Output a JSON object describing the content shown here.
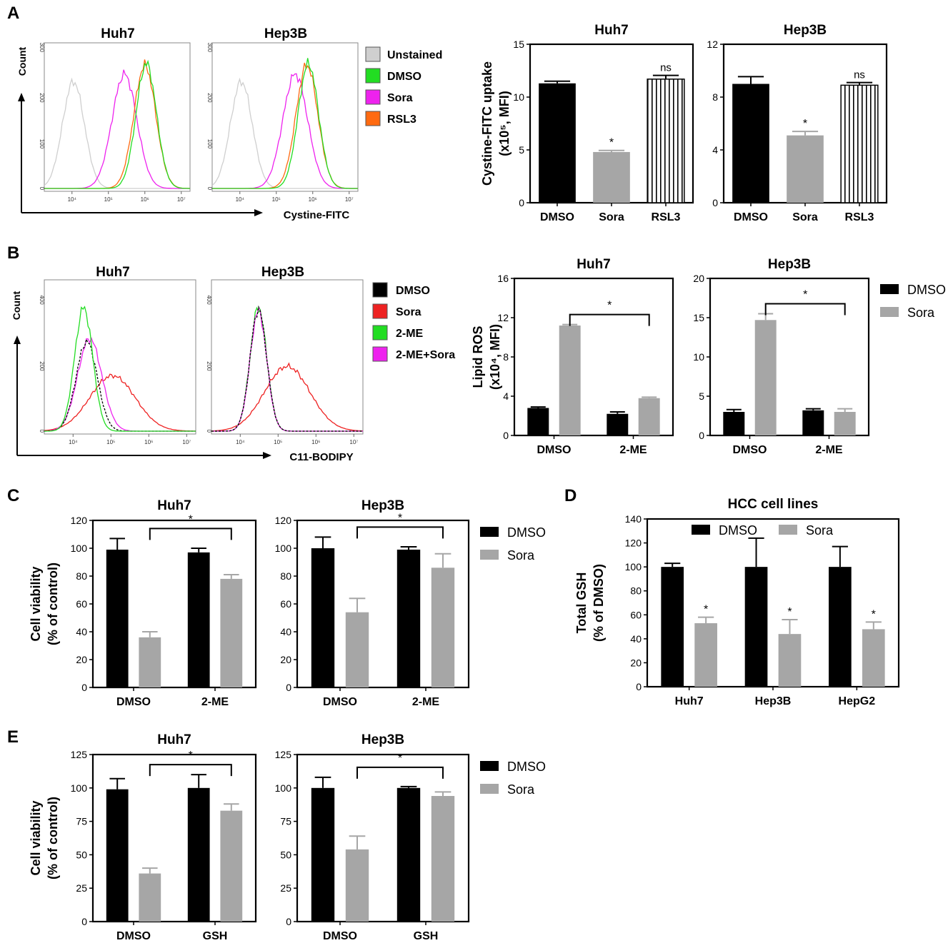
{
  "panels": {
    "A": "A",
    "B": "B",
    "C": "C",
    "D": "D",
    "E": "E"
  },
  "colors": {
    "black": "#000000",
    "gray": "#a6a6a6",
    "unstained": "#cfcfcf",
    "green": "#22dd22",
    "magenta": "#ee22ee",
    "orange": "#ff6a10",
    "red": "#ee2222"
  },
  "histA": {
    "count_label": "Count",
    "x_label": "Cystine-FITC",
    "titles": [
      "Huh7",
      "Hep3B"
    ],
    "y_ticks": [
      "300",
      "200",
      "100",
      "0"
    ],
    "x_ticks": [
      "10⁴",
      "10⁵",
      "10⁶",
      "10⁷"
    ],
    "legend": [
      {
        "label": "Unstained",
        "color": "#cfcfcf"
      },
      {
        "label": "DMSO",
        "color": "#22dd22"
      },
      {
        "label": "Sora",
        "color": "#ee22ee"
      },
      {
        "label": "RSL3",
        "color": "#ff6a10"
      }
    ]
  },
  "histB": {
    "count_label": "Count",
    "x_label": "C11-BODIPY",
    "titles": [
      "Huh7",
      "Hep3B"
    ],
    "y_ticks": [
      "400",
      "200",
      "0"
    ],
    "x_ticks": [
      "10⁴",
      "10⁵",
      "10⁶",
      "10⁷"
    ],
    "legend": [
      {
        "label": "DMSO",
        "color": "#000000"
      },
      {
        "label": "Sora",
        "color": "#ee2222"
      },
      {
        "label": "2-ME",
        "color": "#22dd22"
      },
      {
        "label": "2-ME+Sora",
        "color": "#ee22ee"
      }
    ]
  },
  "chart_data": [
    {
      "id": "A-huh7",
      "type": "bar",
      "title": "Huh7",
      "ylabel": "Cystine-FITC uptake (x10⁵, MFI)",
      "categories": [
        "DMSO",
        "Sora",
        "RSL3"
      ],
      "values": [
        11.3,
        4.8,
        11.7
      ],
      "errors": [
        0.2,
        0.15,
        0.35
      ],
      "sig": [
        "",
        "*",
        "ns"
      ],
      "ylim": [
        0,
        15
      ],
      "yticks": [
        0,
        5,
        10,
        15
      ]
    },
    {
      "id": "A-hep3b",
      "type": "bar",
      "title": "Hep3B",
      "ylabel": "",
      "categories": [
        "DMSO",
        "Sora",
        "RSL3"
      ],
      "values": [
        9.0,
        5.1,
        8.9
      ],
      "errors": [
        0.55,
        0.3,
        0.2
      ],
      "sig": [
        "",
        "*",
        "ns"
      ],
      "ylim": [
        0,
        12
      ],
      "yticks": [
        0,
        4,
        8,
        12
      ]
    },
    {
      "id": "B-huh7",
      "type": "bar",
      "title": "Huh7",
      "ylabel": "Lipid ROS (x10⁴, MFI)",
      "categories": [
        "DMSO",
        "2-ME"
      ],
      "series": [
        {
          "name": "DMSO",
          "values": [
            2.8,
            2.2
          ],
          "errors": [
            0.1,
            0.2
          ]
        },
        {
          "name": "Sora",
          "values": [
            11.2,
            3.8
          ],
          "errors": [
            0.1,
            0.1
          ]
        }
      ],
      "bracket": "*",
      "ylim": [
        0,
        16
      ],
      "yticks": [
        0,
        4,
        8,
        12,
        16
      ]
    },
    {
      "id": "B-hep3b",
      "type": "bar",
      "title": "Hep3B",
      "ylabel": "",
      "categories": [
        "DMSO",
        "2-ME"
      ],
      "series": [
        {
          "name": "DMSO",
          "values": [
            3.0,
            3.2
          ],
          "errors": [
            0.3,
            0.2
          ]
        },
        {
          "name": "Sora",
          "values": [
            14.7,
            3.0
          ],
          "errors": [
            0.8,
            0.4
          ]
        }
      ],
      "bracket": "*",
      "ylim": [
        0,
        20
      ],
      "yticks": [
        0,
        5,
        10,
        15,
        20
      ],
      "legend": [
        "DMSO",
        "Sora"
      ]
    },
    {
      "id": "C-huh7",
      "type": "bar",
      "title": "Huh7",
      "ylabel": "Cell viability (% of control)",
      "categories": [
        "DMSO",
        "2-ME"
      ],
      "series": [
        {
          "name": "DMSO",
          "values": [
            99,
            97
          ],
          "errors": [
            8,
            3
          ]
        },
        {
          "name": "Sora",
          "values": [
            36,
            78
          ],
          "errors": [
            4,
            3
          ]
        }
      ],
      "bracket": "*",
      "ylim": [
        0,
        120
      ],
      "yticks": [
        0,
        20,
        40,
        60,
        80,
        100,
        120
      ]
    },
    {
      "id": "C-hep3b",
      "type": "bar",
      "title": "Hep3B",
      "ylabel": "",
      "categories": [
        "DMSO",
        "2-ME"
      ],
      "series": [
        {
          "name": "DMSO",
          "values": [
            100,
            99
          ],
          "errors": [
            8,
            2
          ]
        },
        {
          "name": "Sora",
          "values": [
            54,
            86
          ],
          "errors": [
            10,
            10
          ]
        }
      ],
      "bracket": "*",
      "ylim": [
        0,
        120
      ],
      "yticks": [
        0,
        20,
        40,
        60,
        80,
        100,
        120
      ],
      "legend": [
        "DMSO",
        "Sora"
      ]
    },
    {
      "id": "D-hcc",
      "type": "bar",
      "title": "HCC cell lines",
      "ylabel": "Total GSH (% of DMSO)",
      "categories": [
        "Huh7",
        "Hep3B",
        "HepG2"
      ],
      "series": [
        {
          "name": "DMSO",
          "values": [
            100,
            100,
            100
          ],
          "errors": [
            3,
            24,
            17
          ]
        },
        {
          "name": "Sora",
          "values": [
            53,
            44,
            48
          ],
          "errors": [
            5,
            12,
            6
          ]
        }
      ],
      "sig": [
        "*",
        "*",
        "*"
      ],
      "ylim": [
        0,
        140
      ],
      "yticks": [
        0,
        20,
        40,
        60,
        80,
        100,
        120,
        140
      ],
      "legend": [
        "DMSO",
        "Sora"
      ]
    },
    {
      "id": "E-huh7",
      "type": "bar",
      "title": "Huh7",
      "ylabel": "Cell viability (% of control)",
      "categories": [
        "DMSO",
        "GSH"
      ],
      "series": [
        {
          "name": "DMSO",
          "values": [
            99,
            100
          ],
          "errors": [
            8,
            10
          ]
        },
        {
          "name": "Sora",
          "values": [
            36,
            83
          ],
          "errors": [
            4,
            5
          ]
        }
      ],
      "bracket": "*",
      "ylim": [
        0,
        125
      ],
      "yticks": [
        0,
        25,
        50,
        75,
        100,
        125
      ]
    },
    {
      "id": "E-hep3b",
      "type": "bar",
      "title": "Hep3B",
      "ylabel": "",
      "categories": [
        "DMSO",
        "GSH"
      ],
      "series": [
        {
          "name": "DMSO",
          "values": [
            100,
            100
          ],
          "errors": [
            8,
            1
          ]
        },
        {
          "name": "Sora",
          "values": [
            54,
            94
          ],
          "errors": [
            10,
            3
          ]
        }
      ],
      "bracket": "*",
      "ylim": [
        0,
        125
      ],
      "yticks": [
        0,
        25,
        50,
        75,
        100,
        125
      ],
      "legend": [
        "DMSO",
        "Sora"
      ]
    }
  ]
}
